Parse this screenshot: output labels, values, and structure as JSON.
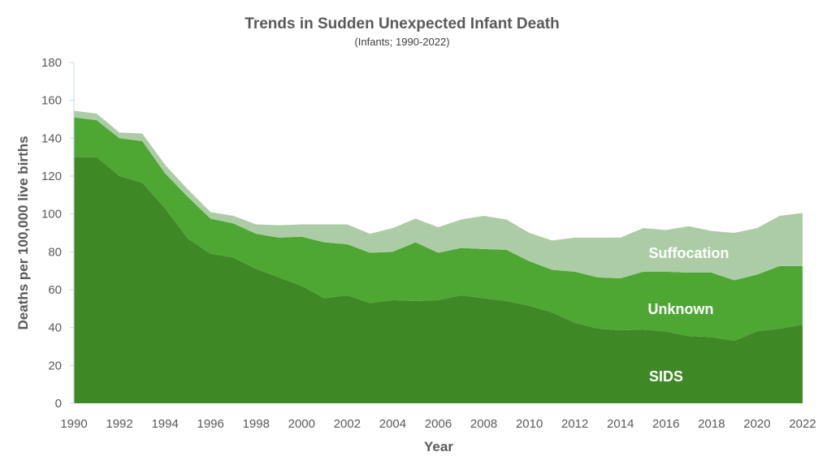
{
  "chart_data": {
    "type": "area",
    "stacked": true,
    "title": "Trends in Sudden Unexpected Infant Death",
    "subtitle": "(Infants; 1990-2022)",
    "xlabel": "Year",
    "ylabel": "Deaths per 100,000 live births",
    "ylim": [
      0,
      180
    ],
    "xlim": [
      1990,
      2022
    ],
    "yticks": [
      "0",
      "20",
      "40",
      "60",
      "80",
      "100",
      "120",
      "140",
      "160",
      "180"
    ],
    "xticks": [
      "1990",
      "1992",
      "1994",
      "1996",
      "1998",
      "2000",
      "2002",
      "2004",
      "2006",
      "2008",
      "2010",
      "2012",
      "2014",
      "2016",
      "2018",
      "2020",
      "2022"
    ],
    "grid": false,
    "x": [
      1990,
      1991,
      1992,
      1993,
      1994,
      1995,
      1996,
      1997,
      1998,
      1999,
      2000,
      2001,
      2002,
      2003,
      2004,
      2005,
      2006,
      2007,
      2008,
      2009,
      2010,
      2011,
      2012,
      2013,
      2014,
      2015,
      2016,
      2017,
      2018,
      2019,
      2020,
      2021,
      2022
    ],
    "series": [
      {
        "name": "SIDS",
        "color": "#3f8826",
        "values": [
          130,
          130,
          120,
          116.5,
          103,
          87,
          79,
          77,
          71,
          66.5,
          62,
          55.5,
          57,
          53,
          54.5,
          54,
          54.5,
          57,
          55.5,
          54,
          51.5,
          48,
          42.5,
          39.5,
          38.5,
          39,
          38,
          35.5,
          35,
          33,
          38,
          39.5,
          41.5
        ]
      },
      {
        "name": "Unknown",
        "color": "#4ea732",
        "values": [
          21,
          19.5,
          20,
          22,
          18.5,
          22,
          18.5,
          18,
          18.5,
          21,
          26,
          29.5,
          27,
          26.5,
          25.5,
          31,
          25,
          25,
          26,
          27,
          23.5,
          22.5,
          27,
          27,
          27.5,
          30.5,
          31.5,
          33.5,
          34,
          32,
          30,
          33,
          31
        ]
      },
      {
        "name": "Suffocation",
        "color": "#abcca4",
        "values": [
          3.5,
          3.5,
          3,
          4,
          4.5,
          4,
          3.5,
          4,
          5,
          6.5,
          6.5,
          9.5,
          10.5,
          10,
          12.5,
          12.5,
          13.5,
          15,
          17.5,
          16,
          15,
          15.5,
          18,
          21,
          21.5,
          23,
          22,
          24.5,
          22,
          25,
          24.5,
          26.5,
          28
        ]
      }
    ]
  }
}
